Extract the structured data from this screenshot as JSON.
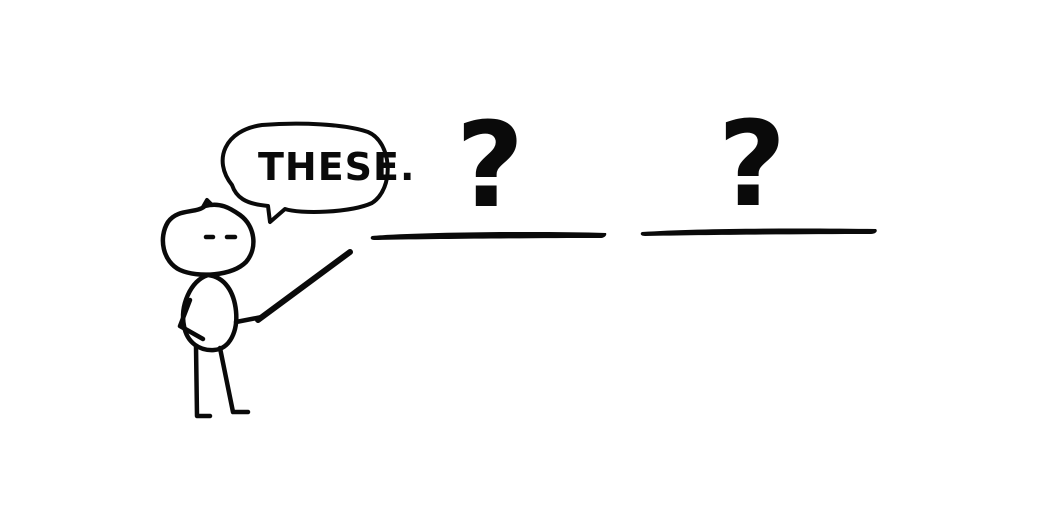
{
  "speech_bubble": {
    "text": "THESE."
  },
  "blanks": [
    {
      "mark": "?"
    },
    {
      "mark": "?"
    }
  ],
  "colors": {
    "ink": "#0a0a0a",
    "background": "#ffffff"
  }
}
